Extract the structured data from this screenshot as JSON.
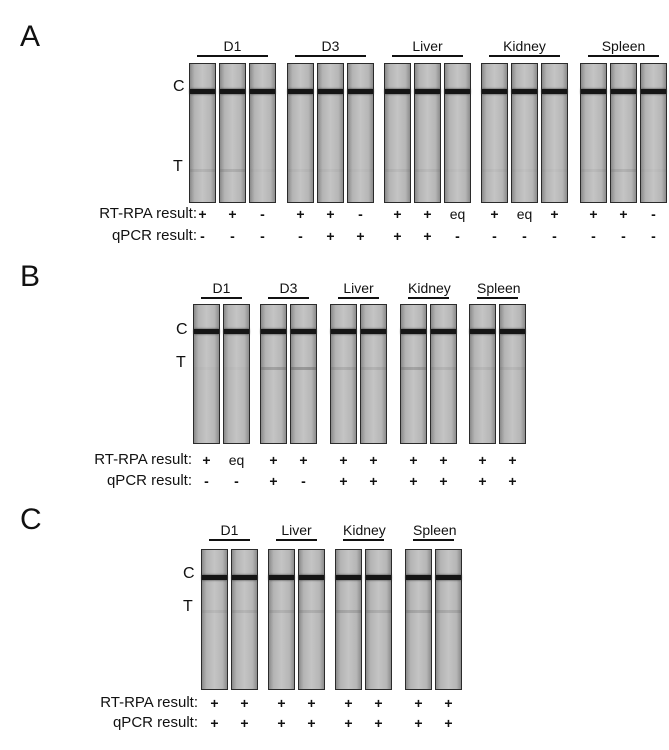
{
  "panels": [
    {
      "letter": "A",
      "band_labels": {
        "control": "C",
        "test": "T"
      },
      "row_labels": {
        "rtrpa": "RT-RPA result:",
        "qpcr": "qPCR result:"
      },
      "groups": [
        {
          "label": "D1",
          "rtrpa": [
            "+",
            "+",
            "-"
          ],
          "qpcr": [
            "-",
            "-",
            "-"
          ],
          "test_intensity": [
            0.25,
            0.35,
            0.05
          ]
        },
        {
          "label": "D3",
          "rtrpa": [
            "+",
            "+",
            "-"
          ],
          "qpcr": [
            "-",
            "+",
            "+"
          ],
          "test_intensity": [
            0.1,
            0.1,
            0.05
          ]
        },
        {
          "label": "Liver",
          "rtrpa": [
            "+",
            "+",
            "eq"
          ],
          "qpcr": [
            "+",
            "+",
            "-"
          ],
          "test_intensity": [
            0.15,
            0.15,
            0.05
          ]
        },
        {
          "label": "Kidney",
          "rtrpa": [
            "+",
            "eq",
            "+"
          ],
          "qpcr": [
            "-",
            "-",
            "-"
          ],
          "test_intensity": [
            0.1,
            0.05,
            0.05
          ]
        },
        {
          "label": "Spleen",
          "rtrpa": [
            "+",
            "+",
            "-"
          ],
          "qpcr": [
            "-",
            "-",
            "-"
          ],
          "test_intensity": [
            0.15,
            0.3,
            0.05
          ]
        }
      ]
    },
    {
      "letter": "B",
      "band_labels": {
        "control": "C",
        "test": "T"
      },
      "row_labels": {
        "rtrpa": "RT-RPA result:",
        "qpcr": "qPCR result:"
      },
      "groups": [
        {
          "label": "D1",
          "rtrpa": [
            "+",
            "eq"
          ],
          "qpcr": [
            "-",
            "-"
          ],
          "test_intensity": [
            0.05,
            0.05
          ]
        },
        {
          "label": "D3",
          "rtrpa": [
            "+",
            "+"
          ],
          "qpcr": [
            "+",
            "-"
          ],
          "test_intensity": [
            0.6,
            0.75
          ]
        },
        {
          "label": "Liver",
          "rtrpa": [
            "+",
            "+"
          ],
          "qpcr": [
            "+",
            "+"
          ],
          "test_intensity": [
            0.35,
            0.3
          ]
        },
        {
          "label": "Kidney",
          "rtrpa": [
            "+",
            "+"
          ],
          "qpcr": [
            "+",
            "+"
          ],
          "test_intensity": [
            0.55,
            0.25
          ]
        },
        {
          "label": "Spleen",
          "rtrpa": [
            "+",
            "+"
          ],
          "qpcr": [
            "+",
            "+"
          ],
          "test_intensity": [
            0.2,
            0.2
          ]
        }
      ]
    },
    {
      "letter": "C",
      "band_labels": {
        "control": "C",
        "test": "T"
      },
      "row_labels": {
        "rtrpa": "RT-RPA result:",
        "qpcr": "qPCR result:"
      },
      "groups": [
        {
          "label": "D1",
          "rtrpa": [
            "+",
            "+"
          ],
          "qpcr": [
            "+",
            "+"
          ],
          "test_intensity": [
            0.2,
            0.25
          ]
        },
        {
          "label": "Liver",
          "rtrpa": [
            "+",
            "+"
          ],
          "qpcr": [
            "+",
            "+"
          ],
          "test_intensity": [
            0.3,
            0.35
          ]
        },
        {
          "label": "Kidney",
          "rtrpa": [
            "+",
            "+"
          ],
          "qpcr": [
            "+",
            "+"
          ],
          "test_intensity": [
            0.45,
            0.35
          ]
        },
        {
          "label": "Spleen",
          "rtrpa": [
            "+",
            "+"
          ],
          "qpcr": [
            "+",
            "+"
          ],
          "test_intensity": [
            0.45,
            0.4
          ]
        }
      ]
    }
  ]
}
